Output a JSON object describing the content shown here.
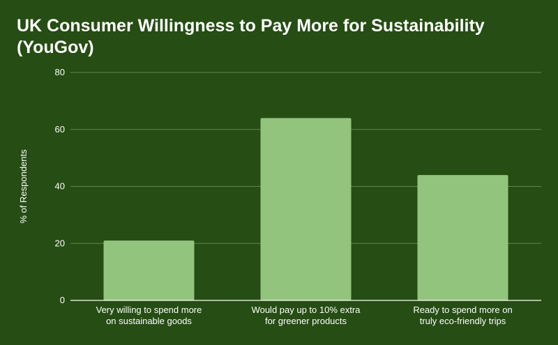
{
  "chart_data": {
    "type": "bar",
    "title": "UK Consumer Willingness to Pay More for Sustainability (YouGov)",
    "xlabel": "",
    "ylabel": "% of Respondents",
    "categories": [
      [
        "Very willing to spend more",
        "on sustainable goods"
      ],
      [
        "Would pay up to 10% extra",
        "for greener products"
      ],
      [
        "Ready to spend more on",
        "truly eco-friendly trips"
      ]
    ],
    "values": [
      21,
      64,
      44
    ],
    "ylim": [
      0,
      80
    ],
    "yticks": [
      0,
      20,
      40,
      60,
      80
    ],
    "grid": true,
    "legend": "none",
    "colors": {
      "background": "#264d14",
      "bar": "#93c47d",
      "grid": "#5f8a4a",
      "axis": "#ffffff",
      "text": "#ffffff"
    }
  }
}
